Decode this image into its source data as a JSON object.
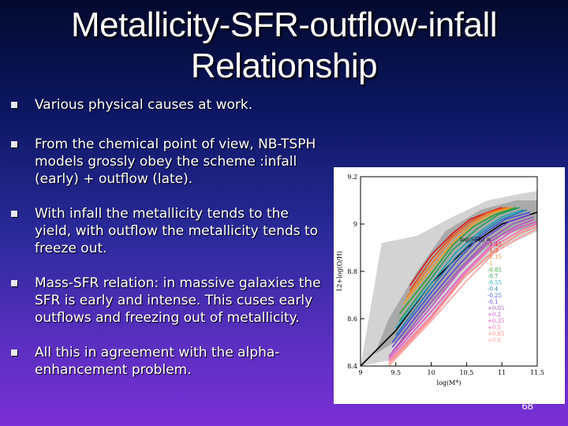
{
  "slide": {
    "title": "Metallicity-SFR-outflow-infall Relationship",
    "bullets": [
      "Various physical causes at work.",
      "From the chemical point of view, NB-TSPH models grossly obey the scheme :infall (early) + outflow (late).",
      "With infall the metallicity tends to the yield, with outflow the metallicity tends to freeze out.",
      "Mass-SFR relation: in massive galaxies the SFR is early and intense. This cuses early outflows and freezing out of metallicity.",
      "All this in agreement with the alpha-enhancement problem."
    ],
    "page_number": "68"
  },
  "chart_data": {
    "type": "line",
    "xlabel": "log(M*)",
    "ylabel": "12+log(O/H)",
    "xlim": [
      9,
      11.5
    ],
    "ylim": [
      8.4,
      9.2
    ],
    "x_ticks": [
      "9",
      "9.5",
      "10",
      "10.5",
      "11",
      "11.5"
    ],
    "y_ticks": [
      "8.4",
      "8.6",
      "8.8",
      "9",
      "9.2"
    ],
    "legend_title": "log(SFR) =",
    "series": [
      {
        "name": "-1.45",
        "color": "#d7191c",
        "values": [
          [
            9.7,
            8.74
          ],
          [
            10.0,
            8.87
          ],
          [
            10.3,
            8.96
          ],
          [
            10.55,
            9.02
          ],
          [
            10.8,
            9.05
          ],
          [
            11.0,
            9.07
          ]
        ]
      },
      {
        "name": "-1.3",
        "color": "#e84a1c",
        "values": [
          [
            9.7,
            8.72
          ],
          [
            10.0,
            8.85
          ],
          [
            10.3,
            8.95
          ],
          [
            10.55,
            9.01
          ],
          [
            10.8,
            9.05
          ],
          [
            11.05,
            9.07
          ]
        ]
      },
      {
        "name": "-1.15",
        "color": "#f47a1c",
        "values": [
          [
            9.65,
            8.69
          ],
          [
            10.0,
            8.83
          ],
          [
            10.3,
            8.94
          ],
          [
            10.6,
            9.01
          ],
          [
            10.85,
            9.05
          ],
          [
            11.1,
            9.07
          ]
        ]
      },
      {
        "name": "-1",
        "color": "#ef9d2a",
        "values": [
          [
            9.6,
            8.66
          ],
          [
            10.0,
            8.81
          ],
          [
            10.3,
            8.92
          ],
          [
            10.6,
            9.0
          ],
          [
            10.9,
            9.05
          ],
          [
            11.15,
            9.07
          ]
        ]
      },
      {
        "name": "-0.85",
        "color": "#2ca02c",
        "values": [
          [
            9.55,
            8.62
          ],
          [
            10.0,
            8.79
          ],
          [
            10.3,
            8.91
          ],
          [
            10.6,
            8.99
          ],
          [
            10.9,
            9.04
          ],
          [
            11.2,
            9.07
          ]
        ]
      },
      {
        "name": "-0.7",
        "color": "#1f9e5a",
        "values": [
          [
            9.55,
            8.59
          ],
          [
            10.0,
            8.77
          ],
          [
            10.3,
            8.89
          ],
          [
            10.65,
            8.98
          ],
          [
            10.95,
            9.04
          ],
          [
            11.25,
            9.07
          ]
        ]
      },
      {
        "name": "-0.55",
        "color": "#17a2b8",
        "values": [
          [
            9.5,
            8.56
          ],
          [
            10.0,
            8.75
          ],
          [
            10.35,
            8.88
          ],
          [
            10.7,
            8.97
          ],
          [
            11.0,
            9.03
          ],
          [
            11.3,
            9.06
          ]
        ]
      },
      {
        "name": "-0.4",
        "color": "#1f77b4",
        "values": [
          [
            9.5,
            8.53
          ],
          [
            10.0,
            8.73
          ],
          [
            10.35,
            8.86
          ],
          [
            10.7,
            8.96
          ],
          [
            11.0,
            9.02
          ],
          [
            11.35,
            9.06
          ]
        ]
      },
      {
        "name": "-0.25",
        "color": "#3a4fd6",
        "values": [
          [
            9.45,
            8.5
          ],
          [
            10.0,
            8.71
          ],
          [
            10.35,
            8.84
          ],
          [
            10.7,
            8.95
          ],
          [
            11.05,
            9.02
          ],
          [
            11.4,
            9.05
          ]
        ]
      },
      {
        "name": "-0.1",
        "color": "#6a3fd6",
        "values": [
          [
            9.45,
            8.48
          ],
          [
            10.0,
            8.69
          ],
          [
            10.4,
            8.83
          ],
          [
            10.75,
            8.94
          ],
          [
            11.1,
            9.01
          ],
          [
            11.4,
            9.04
          ]
        ]
      },
      {
        "name": "+0.05",
        "color": "#9b59b6",
        "values": [
          [
            9.45,
            8.46
          ],
          [
            10.0,
            8.67
          ],
          [
            10.4,
            8.81
          ],
          [
            10.8,
            8.93
          ],
          [
            11.15,
            9.0
          ],
          [
            11.45,
            9.03
          ]
        ]
      },
      {
        "name": "+0.2",
        "color": "#c04fc0",
        "values": [
          [
            9.4,
            8.44
          ],
          [
            10.0,
            8.65
          ],
          [
            10.4,
            8.8
          ],
          [
            10.8,
            8.92
          ],
          [
            11.2,
            8.99
          ],
          [
            11.45,
            9.02
          ]
        ]
      },
      {
        "name": "+0.35",
        "color": "#e056c0",
        "values": [
          [
            9.4,
            8.43
          ],
          [
            10.0,
            8.63
          ],
          [
            10.45,
            8.79
          ],
          [
            10.85,
            8.91
          ],
          [
            11.2,
            8.98
          ],
          [
            11.5,
            9.01
          ]
        ]
      },
      {
        "name": "+0.5",
        "color": "#ff6fa8",
        "values": [
          [
            9.4,
            8.42
          ],
          [
            10.0,
            8.61
          ],
          [
            10.45,
            8.78
          ],
          [
            10.85,
            8.9
          ],
          [
            11.25,
            8.97
          ],
          [
            11.5,
            9.0
          ]
        ]
      },
      {
        "name": "+0.65",
        "color": "#ff8a7a",
        "values": [
          [
            9.4,
            8.41
          ],
          [
            10.0,
            8.6
          ],
          [
            10.45,
            8.77
          ],
          [
            10.9,
            8.89
          ],
          [
            11.25,
            8.96
          ],
          [
            11.5,
            8.99
          ]
        ]
      },
      {
        "name": "+0.8",
        "color": "#ff9f9f",
        "values": [
          [
            9.4,
            8.4
          ],
          [
            10.0,
            8.59
          ],
          [
            10.5,
            8.76
          ],
          [
            10.9,
            8.88
          ],
          [
            11.3,
            8.95
          ],
          [
            11.5,
            8.98
          ]
        ]
      }
    ],
    "envelope": {
      "outer_lower": [
        [
          9.0,
          8.4
        ],
        [
          9.5,
          8.43
        ],
        [
          10.0,
          8.6
        ],
        [
          10.5,
          8.78
        ],
        [
          11.0,
          8.9
        ],
        [
          11.5,
          8.97
        ]
      ],
      "outer_upper": [
        [
          9.3,
          8.92
        ],
        [
          9.8,
          8.95
        ],
        [
          10.3,
          9.03
        ],
        [
          10.8,
          9.1
        ],
        [
          11.3,
          9.13
        ],
        [
          11.5,
          9.14
        ]
      ],
      "inner_lower": [
        [
          9.2,
          8.45
        ],
        [
          9.6,
          8.52
        ],
        [
          10.0,
          8.66
        ],
        [
          10.5,
          8.83
        ],
        [
          11.0,
          8.95
        ],
        [
          11.5,
          9.0
        ]
      ],
      "inner_upper": [
        [
          9.4,
          8.6
        ],
        [
          9.8,
          8.8
        ],
        [
          10.2,
          8.97
        ],
        [
          10.7,
          9.06
        ],
        [
          11.2,
          9.1
        ],
        [
          11.5,
          9.1
        ]
      ],
      "median": [
        [
          9.0,
          8.3
        ],
        [
          9.5,
          8.55
        ],
        [
          10.0,
          8.75
        ],
        [
          10.5,
          8.9
        ],
        [
          11.0,
          9.0
        ],
        [
          11.5,
          9.05
        ]
      ]
    },
    "colors": {
      "band_outer": "#d3d3d3",
      "band_inner": "#a9a9a9",
      "median": "#000000"
    }
  }
}
